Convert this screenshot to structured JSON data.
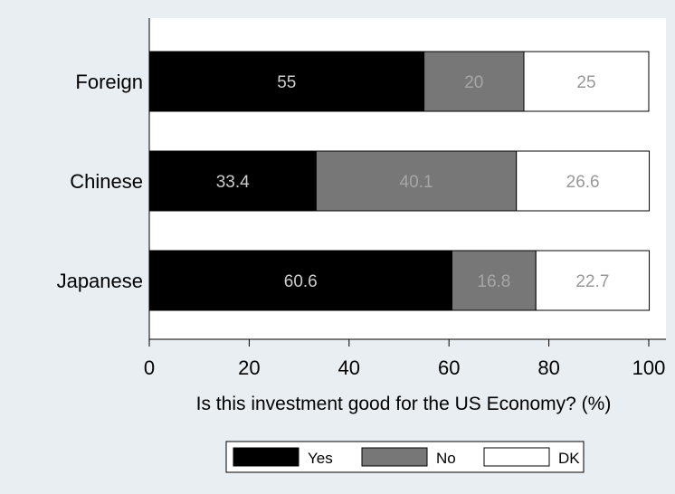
{
  "chart_data": {
    "type": "bar",
    "orientation": "horizontal",
    "stacked": true,
    "categories": [
      "Foreign",
      "Chinese",
      "Japanese"
    ],
    "series": [
      {
        "name": "Yes",
        "values": [
          55,
          33.4,
          60.6
        ],
        "color": "#000000",
        "label_color": "#cccccc"
      },
      {
        "name": "No",
        "values": [
          20,
          40.1,
          16.8
        ],
        "color": "#777777",
        "label_color": "#a6a6a6"
      },
      {
        "name": "DK",
        "values": [
          25,
          26.6,
          22.7
        ],
        "color": "#ffffff",
        "label_color": "#999999"
      }
    ],
    "data_labels": [
      [
        "55",
        "33.4",
        "60.6"
      ],
      [
        "20",
        "40.1",
        "16.8"
      ],
      [
        "25",
        "26.6",
        "22.7"
      ]
    ],
    "xlabel": "Is this investment good for the US Economy? (%)",
    "ylabel": "",
    "xlim": [
      0,
      100
    ],
    "xticks": [
      0,
      20,
      40,
      60,
      80,
      100
    ],
    "xtick_labels": [
      "0",
      "20",
      "40",
      "60",
      "80",
      "100"
    ],
    "grid": false,
    "legend_position": "bottom",
    "colors": {
      "page_background": "#e8eef2",
      "plot_background": "#ffffff"
    }
  }
}
